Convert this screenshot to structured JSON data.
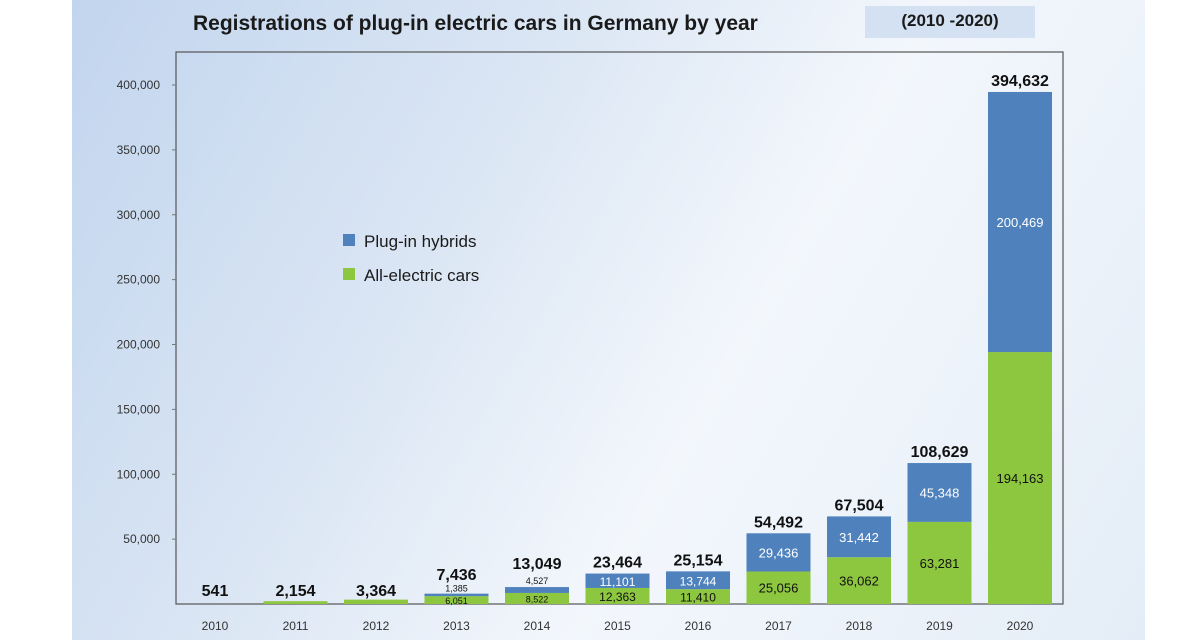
{
  "chart_data": {
    "type": "bar",
    "stacked": true,
    "title": "Registrations of plug-in electric cars in Germany by year",
    "subtitle": "(2010 -2020)",
    "xlabel": "",
    "ylabel": "",
    "ylim": [
      0,
      420000
    ],
    "yticks": [
      "50,000",
      "100,000",
      "150,000",
      "200,000",
      "250,000",
      "300,000",
      "350,000",
      "400,000"
    ],
    "ytick_values": [
      50000,
      100000,
      150000,
      200000,
      250000,
      300000,
      350000,
      400000
    ],
    "legend_position": "upper-left-inside",
    "categories": [
      "2010",
      "2011",
      "2012",
      "2013",
      "2014",
      "2015",
      "2016",
      "2017",
      "2018",
      "2019",
      "2020"
    ],
    "series": [
      {
        "name": "All-electric cars",
        "color": "#8dc63f",
        "values": [
          541,
          2154,
          3364,
          6051,
          8522,
          12363,
          11410,
          25056,
          36062,
          63281,
          194163
        ],
        "labels": [
          "",
          "",
          "",
          "6,051",
          "8,522",
          "12,363",
          "11,410",
          "25,056",
          "36,062",
          "63,281",
          "194,163"
        ]
      },
      {
        "name": "Plug-in hybrids",
        "color": "#4f81bd",
        "values": [
          0,
          0,
          0,
          1385,
          4527,
          11101,
          13744,
          29436,
          31442,
          45348,
          200469
        ],
        "labels": [
          "",
          "",
          "",
          "1,385",
          "4,527",
          "11,101",
          "13,744",
          "29,436",
          "31,442",
          "45,348",
          "200,469"
        ]
      }
    ],
    "totals": [
      "541",
      "2,154",
      "3,364",
      "7,436",
      "13,049",
      "23,464",
      "25,154",
      "54,492",
      "67,504",
      "108,629",
      "394,632"
    ]
  }
}
